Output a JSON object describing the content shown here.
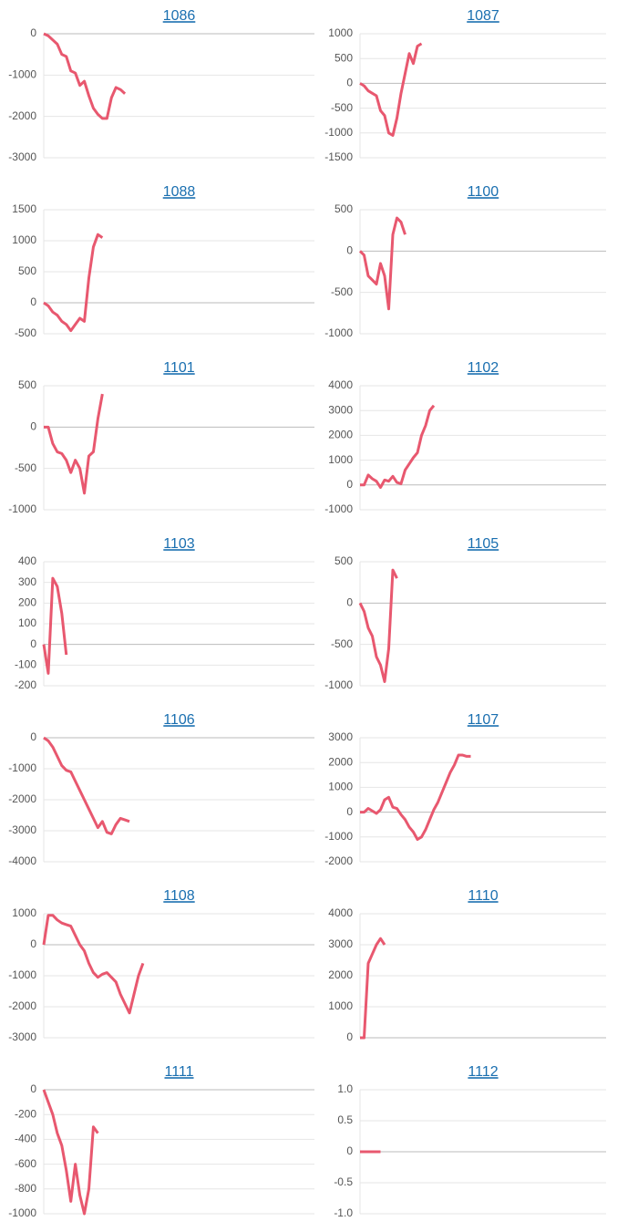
{
  "chart_data": [
    {
      "type": "line",
      "title": "1086",
      "color": "#e8586f",
      "xlim": [
        0,
        60
      ],
      "ylim": [
        -3000,
        0
      ],
      "yticks": [
        0,
        -1000,
        -2000,
        -3000
      ],
      "grid": true,
      "values": [
        0,
        -50,
        -150,
        -250,
        -500,
        -550,
        -900,
        -950,
        -1250,
        -1150,
        -1500,
        -1800,
        -1950,
        -2050,
        -2050,
        -1550,
        -1300,
        -1350,
        -1450
      ]
    },
    {
      "type": "line",
      "title": "1087",
      "color": "#e8586f",
      "xlim": [
        0,
        60
      ],
      "ylim": [
        -1500,
        1000
      ],
      "yticks": [
        1000,
        500,
        0,
        -500,
        -1000,
        -1500
      ],
      "grid": true,
      "values": [
        0,
        -50,
        -150,
        -200,
        -250,
        -550,
        -650,
        -1000,
        -1050,
        -700,
        -200,
        200,
        600,
        400,
        750,
        800
      ]
    },
    {
      "type": "line",
      "title": "1088",
      "color": "#e8586f",
      "xlim": [
        0,
        60
      ],
      "ylim": [
        -500,
        1500
      ],
      "yticks": [
        1500,
        1000,
        500,
        0,
        -500
      ],
      "grid": true,
      "values": [
        0,
        -50,
        -150,
        -200,
        -300,
        -350,
        -450,
        -350,
        -250,
        -300,
        400,
        900,
        1100,
        1050
      ]
    },
    {
      "type": "line",
      "title": "1100",
      "color": "#e8586f",
      "xlim": [
        0,
        60
      ],
      "ylim": [
        -1000,
        500
      ],
      "yticks": [
        500,
        0,
        -500,
        -1000
      ],
      "grid": true,
      "values": [
        0,
        -50,
        -300,
        -350,
        -400,
        -150,
        -300,
        -700,
        200,
        400,
        350,
        200
      ]
    },
    {
      "type": "line",
      "title": "1101",
      "color": "#e8586f",
      "xlim": [
        0,
        60
      ],
      "ylim": [
        -1000,
        500
      ],
      "yticks": [
        500,
        0,
        -500,
        -1000
      ],
      "grid": true,
      "values": [
        0,
        0,
        -200,
        -300,
        -320,
        -400,
        -550,
        -400,
        -500,
        -800,
        -350,
        -300,
        100,
        400
      ]
    },
    {
      "type": "line",
      "title": "1102",
      "color": "#e8586f",
      "xlim": [
        0,
        60
      ],
      "ylim": [
        -1000,
        4000
      ],
      "yticks": [
        4000,
        3000,
        2000,
        1000,
        0,
        -1000
      ],
      "grid": true,
      "values": [
        0,
        0,
        400,
        250,
        150,
        -100,
        200,
        150,
        350,
        100,
        50,
        600,
        850,
        1100,
        1300,
        2000,
        2400,
        3000,
        3200
      ]
    },
    {
      "type": "line",
      "title": "1103",
      "color": "#e8586f",
      "xlim": [
        0,
        60
      ],
      "ylim": [
        -200,
        400
      ],
      "yticks": [
        400,
        300,
        200,
        100,
        0,
        -100,
        -200
      ],
      "grid": true,
      "values": [
        0,
        -140,
        320,
        280,
        150,
        -50
      ]
    },
    {
      "type": "line",
      "title": "1105",
      "color": "#e8586f",
      "xlim": [
        0,
        60
      ],
      "ylim": [
        -1000,
        500
      ],
      "yticks": [
        500,
        0,
        -500,
        -1000
      ],
      "grid": true,
      "values": [
        0,
        -100,
        -300,
        -400,
        -650,
        -750,
        -950,
        -550,
        400,
        300
      ]
    },
    {
      "type": "line",
      "title": "1106",
      "color": "#e8586f",
      "xlim": [
        0,
        60
      ],
      "ylim": [
        -4000,
        0
      ],
      "yticks": [
        0,
        -1000,
        -2000,
        -3000,
        -4000
      ],
      "grid": true,
      "values": [
        0,
        -100,
        -300,
        -600,
        -900,
        -1050,
        -1100,
        -1400,
        -1700,
        -2000,
        -2300,
        -2600,
        -2900,
        -2700,
        -3050,
        -3100,
        -2800,
        -2600,
        -2650,
        -2700
      ]
    },
    {
      "type": "line",
      "title": "1107",
      "color": "#e8586f",
      "xlim": [
        0,
        60
      ],
      "ylim": [
        -2000,
        3000
      ],
      "yticks": [
        3000,
        2000,
        1000,
        0,
        -1000,
        -2000
      ],
      "grid": true,
      "values": [
        0,
        0,
        150,
        50,
        -50,
        100,
        500,
        600,
        200,
        150,
        -100,
        -300,
        -600,
        -800,
        -1100,
        -1000,
        -700,
        -300,
        100,
        400,
        800,
        1200,
        1600,
        1900,
        2300,
        2300,
        2250,
        2250
      ]
    },
    {
      "type": "line",
      "title": "1108",
      "color": "#e8586f",
      "xlim": [
        0,
        60
      ],
      "ylim": [
        -3000,
        1000
      ],
      "yticks": [
        1000,
        0,
        -1000,
        -2000,
        -3000
      ],
      "grid": true,
      "values": [
        0,
        950,
        950,
        800,
        700,
        650,
        600,
        300,
        0,
        -200,
        -600,
        -900,
        -1050,
        -950,
        -900,
        -1050,
        -1200,
        -1600,
        -1900,
        -2200,
        -1600,
        -1000,
        -600
      ]
    },
    {
      "type": "line",
      "title": "1110",
      "color": "#e8586f",
      "xlim": [
        0,
        60
      ],
      "ylim": [
        0,
        4000
      ],
      "yticks": [
        4000,
        3000,
        2000,
        1000,
        0
      ],
      "grid": true,
      "values": [
        0,
        0,
        2400,
        2700,
        3000,
        3200,
        3000
      ]
    },
    {
      "type": "line",
      "title": "1111",
      "color": "#e8586f",
      "xlim": [
        0,
        60
      ],
      "ylim": [
        -1000,
        0
      ],
      "yticks": [
        0,
        -200,
        -400,
        -600,
        -800,
        -1000
      ],
      "grid": true,
      "values": [
        0,
        -100,
        -200,
        -350,
        -450,
        -650,
        -900,
        -600,
        -850,
        -1000,
        -800,
        -300,
        -350
      ]
    },
    {
      "type": "line",
      "title": "1112",
      "color": "#e8586f",
      "xlim": [
        0,
        60
      ],
      "ylim": [
        -1,
        1
      ],
      "yticks": [
        {
          "value": 1,
          "label": "1.0"
        },
        0.5,
        0,
        -0.5,
        {
          "value": -1,
          "label": "-1.0"
        }
      ],
      "grid": true,
      "values": [
        0,
        0,
        0,
        0,
        0,
        0
      ]
    }
  ]
}
